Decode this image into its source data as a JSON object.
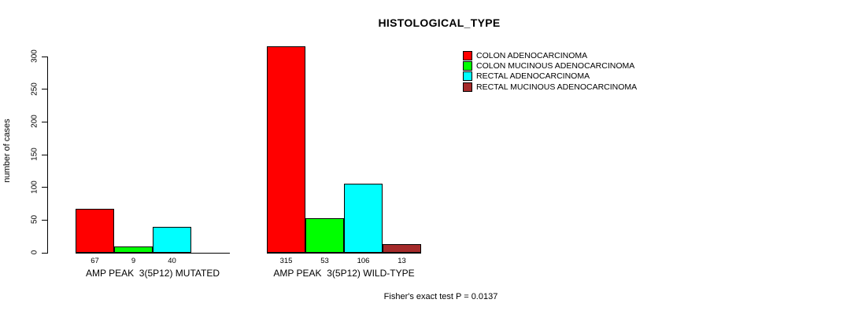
{
  "chart_data": {
    "type": "bar",
    "title": "HISTOLOGICAL_TYPE",
    "ylabel": "number of cases",
    "ylim": [
      0,
      300
    ],
    "yticks": [
      0,
      50,
      100,
      150,
      200,
      250,
      300
    ],
    "grid": false,
    "legend_position": "right",
    "categories": [
      "AMP PEAK  3(5P12) MUTATED",
      "AMP PEAK  3(5P12) WILD-TYPE"
    ],
    "series": [
      {
        "name": "COLON ADENOCARCINOMA",
        "color": "#FF0000",
        "values": [
          67,
          315
        ]
      },
      {
        "name": "COLON MUCINOUS ADENOCARCINOMA",
        "color": "#00FF00",
        "values": [
          9,
          53
        ]
      },
      {
        "name": "RECTAL ADENOCARCINOMA",
        "color": "#00FFFF",
        "values": [
          40,
          106
        ]
      },
      {
        "name": "RECTAL MUCINOUS ADENOCARCINOMA",
        "color": "#A52A2A",
        "values": [
          0,
          13
        ]
      }
    ],
    "bar_value_labels": [
      [
        "67",
        "9",
        "40",
        ""
      ],
      [
        "315",
        "53",
        "106",
        "13"
      ]
    ],
    "annotation": "Fisher's exact test P = 0.0137"
  }
}
